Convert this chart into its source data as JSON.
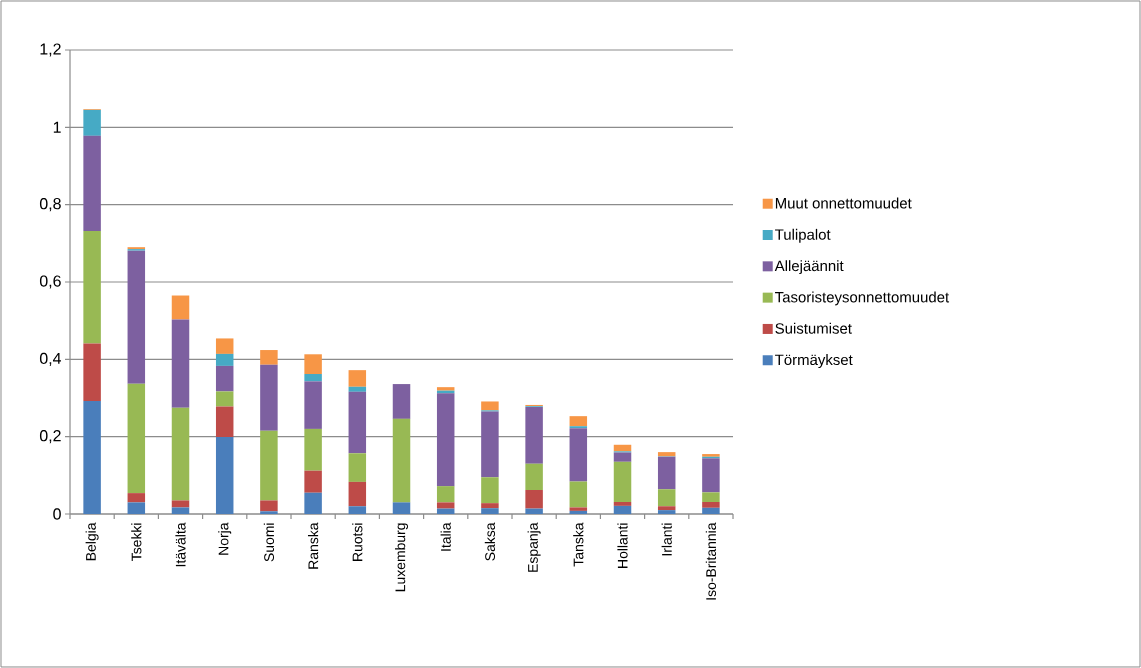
{
  "chart_data": {
    "type": "bar",
    "stacked": true,
    "categories": [
      "Belgia",
      "Tsekki",
      "Itävälta",
      "Norja",
      "Suomi",
      "Ranska",
      "Ruotsi",
      "Luxemburg",
      "Italia",
      "Saksa",
      "Espanja",
      "Tanska",
      "Hollanti",
      "Irlanti",
      "Iso-Britannia"
    ],
    "series": [
      {
        "name": "Törmäykset",
        "color": "#4a7ebb",
        "values": [
          0.292,
          0.03,
          0.017,
          0.199,
          0.007,
          0.055,
          0.02,
          0.03,
          0.014,
          0.015,
          0.014,
          0.008,
          0.021,
          0.01,
          0.016
        ]
      },
      {
        "name": "Suistumiset",
        "color": "#be4b48",
        "values": [
          0.149,
          0.024,
          0.018,
          0.079,
          0.028,
          0.057,
          0.063,
          0,
          0.016,
          0.013,
          0.048,
          0.009,
          0.01,
          0.01,
          0.015
        ]
      },
      {
        "name": "Tasoristeysonnettomuudet",
        "color": "#98b954",
        "values": [
          0.291,
          0.283,
          0.24,
          0.039,
          0.18,
          0.108,
          0.074,
          0.216,
          0.042,
          0.067,
          0.068,
          0.067,
          0.104,
          0.044,
          0.025
        ]
      },
      {
        "name": "Allejäännit",
        "color": "#7d60a0",
        "values": [
          0.246,
          0.344,
          0.228,
          0.066,
          0.171,
          0.123,
          0.159,
          0.09,
          0.24,
          0.17,
          0.147,
          0.138,
          0.024,
          0.084,
          0.088
        ]
      },
      {
        "name": "Tulipalot",
        "color": "#46aac5",
        "values": [
          0.067,
          0.004,
          0,
          0.031,
          0,
          0.019,
          0.013,
          0,
          0.007,
          0.003,
          0.002,
          0.005,
          0.003,
          0.001,
          0.004
        ]
      },
      {
        "name": "Muut onnettomuudet",
        "color": "#f79646",
        "values": [
          0.002,
          0.005,
          0.062,
          0.04,
          0.038,
          0.051,
          0.043,
          0,
          0.009,
          0.023,
          0.003,
          0.026,
          0.017,
          0.011,
          0.007
        ]
      }
    ],
    "ylim": [
      0,
      1.2
    ],
    "yticks": [
      0,
      {
        "value": 0.2,
        "label": "0,2"
      },
      {
        "value": 0.4,
        "label": "0,4"
      },
      {
        "value": 0.6,
        "label": "0,6"
      },
      {
        "value": 0.8,
        "label": "0,8"
      },
      1,
      {
        "value": 1.2,
        "label": "1,2"
      }
    ],
    "grid": "y",
    "legend": "right"
  }
}
